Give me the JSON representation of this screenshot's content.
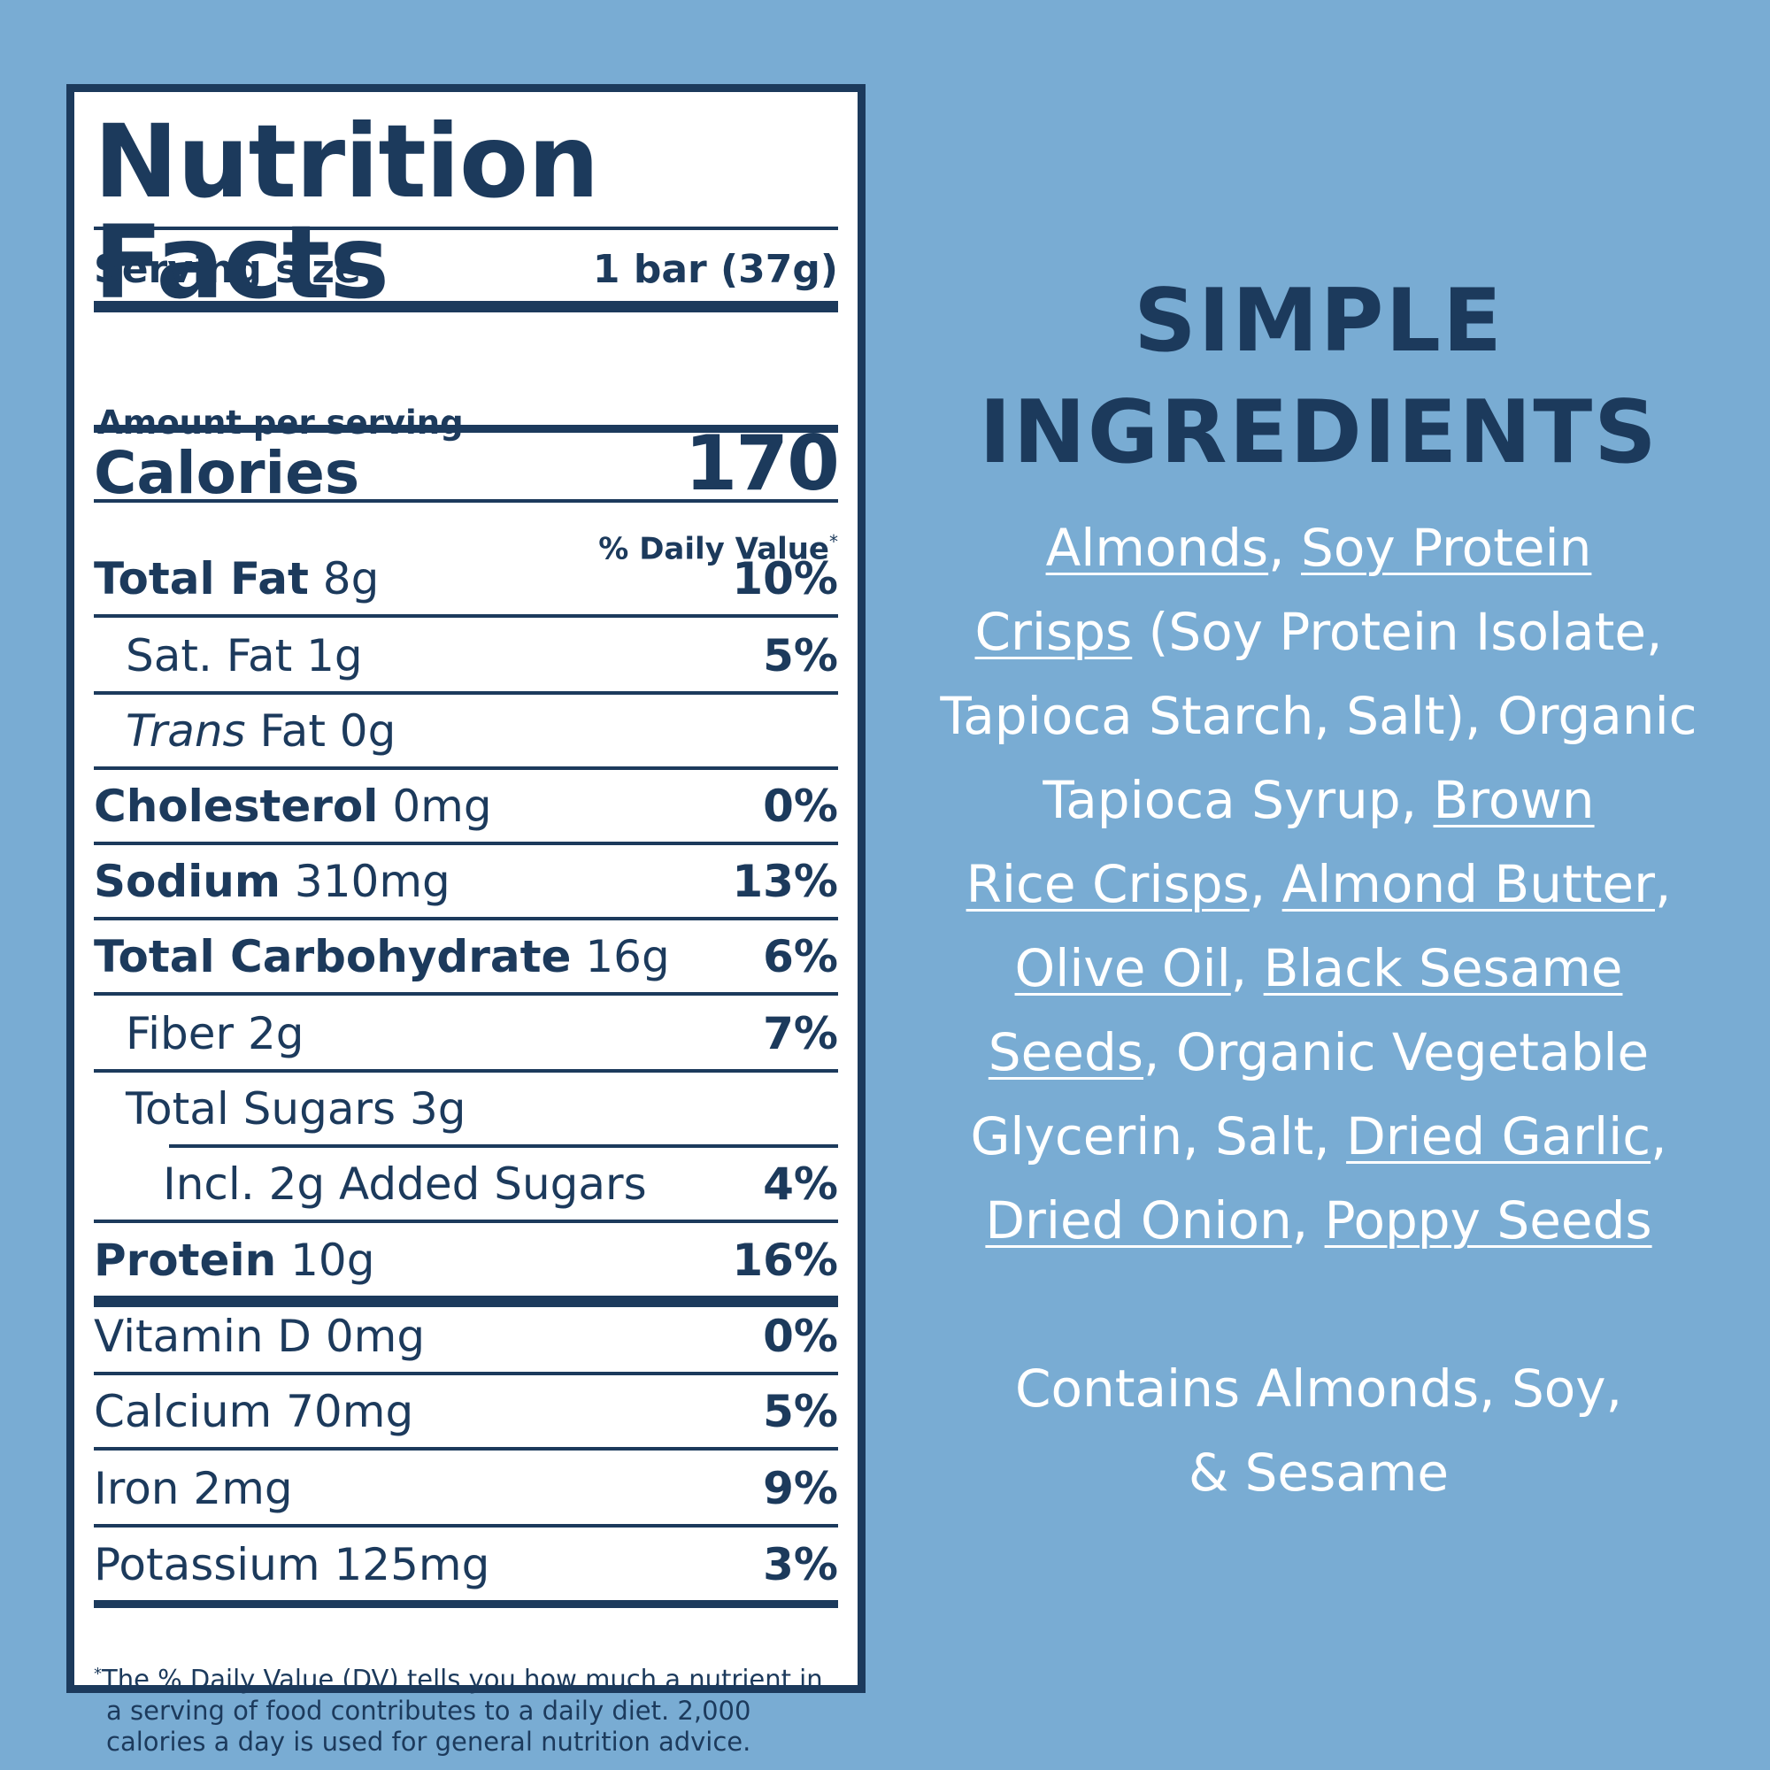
{
  "nutrition": {
    "title": "Nutrition Facts",
    "serving_label": "Serving size",
    "serving_value": "1 bar (37g)",
    "amount_per": "Amount per serving",
    "calories_label": "Calories",
    "calories_value": "170",
    "dv_header": "% Daily Value",
    "dv_marker": "*",
    "rows": [
      {
        "bold": "Total Fat",
        "text": " 8g",
        "pct": "10%"
      },
      {
        "bold": "",
        "text": "Sat. Fat 1g",
        "pct": "5%"
      },
      {
        "italic": "Trans",
        "text": " Fat 0g",
        "pct": ""
      },
      {
        "bold": "Cholesterol",
        "text": " 0mg",
        "pct": "0%"
      },
      {
        "bold": "Sodium",
        "text": " 310mg",
        "pct": "13%"
      },
      {
        "bold": "Total Carbohydrate",
        "text": " 16g",
        "pct": "6%"
      },
      {
        "bold": "",
        "text": "Fiber 2g",
        "pct": "7%"
      },
      {
        "bold": "",
        "text": "Total Sugars 3g",
        "pct": ""
      },
      {
        "bold": "",
        "text": "Incl. 2g Added Sugars",
        "pct": "4%"
      },
      {
        "bold": "Protein",
        "text": " 10g",
        "pct": "16%"
      },
      {
        "bold": "",
        "text": "Vitamin D 0mg",
        "pct": "0%"
      },
      {
        "bold": "",
        "text": "Calcium 70mg",
        "pct": "5%"
      },
      {
        "bold": "",
        "text": "Iron 2mg",
        "pct": "9%"
      },
      {
        "bold": "",
        "text": "Potassium 125mg",
        "pct": "3%"
      }
    ],
    "footnote": [
      "The % Daily Value (DV) tells you how much a nutrient in",
      "a serving of food contributes to a daily diet. 2,000",
      "calories a day is used for general nutrition advice."
    ]
  },
  "ingredients": {
    "title_line1": "SIMPLE",
    "title_line2": "INGREDIENTS",
    "lines": [
      [
        {
          "t": "Almonds",
          "u": true
        },
        {
          "t": ", ",
          "u": false
        },
        {
          "t": "Soy Protein",
          "u": true
        }
      ],
      [
        {
          "t": "Crisps",
          "u": true
        },
        {
          "t": " (Soy Protein Isolate,",
          "u": false
        }
      ],
      [
        {
          "t": "Tapioca Starch, Salt), Organic",
          "u": false
        }
      ],
      [
        {
          "t": "Tapioca Syrup, ",
          "u": false
        },
        {
          "t": "Brown",
          "u": true
        }
      ],
      [
        {
          "t": "Rice Crisps",
          "u": true
        },
        {
          "t": ", ",
          "u": false
        },
        {
          "t": "Almond Butter",
          "u": true
        },
        {
          "t": ",",
          "u": false
        }
      ],
      [
        {
          "t": "Olive Oil",
          "u": true
        },
        {
          "t": ", ",
          "u": false
        },
        {
          "t": "Black Sesame",
          "u": true
        }
      ],
      [
        {
          "t": "Seeds",
          "u": true
        },
        {
          "t": ", Organic Vegetable",
          "u": false
        }
      ],
      [
        {
          "t": "Glycerin, Salt, ",
          "u": false
        },
        {
          "t": "Dried Garlic",
          "u": true
        },
        {
          "t": ",",
          "u": false
        }
      ],
      [
        {
          "t": "Dried Onion",
          "u": true
        },
        {
          "t": ", ",
          "u": false
        },
        {
          "t": "Poppy Seeds",
          "u": true
        }
      ]
    ],
    "allergens_line1": "Contains Almonds, Soy,",
    "allergens_line2": "& Sesame"
  }
}
